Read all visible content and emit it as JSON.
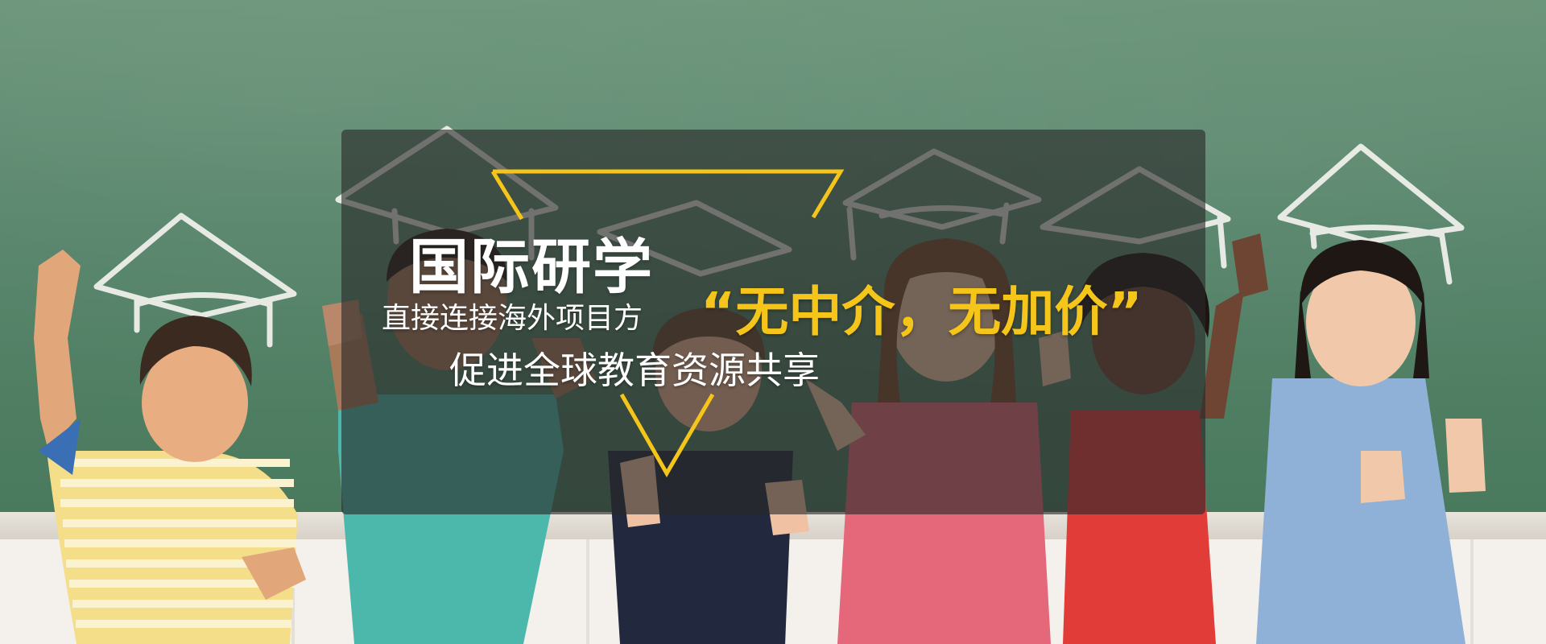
{
  "banner": {
    "headline": "国际研学",
    "subline_1": "直接连接海外项目方",
    "subline_2": "促进全球教育资源共享",
    "slogan": "“无中介，无加价”"
  },
  "colors": {
    "chalkboard": "#5b8a6c",
    "accent_yellow": "#f5c51a",
    "panel_overlay": "#282828",
    "text_white": "#ffffff"
  },
  "icons": [
    "graduation-cap-icon"
  ]
}
